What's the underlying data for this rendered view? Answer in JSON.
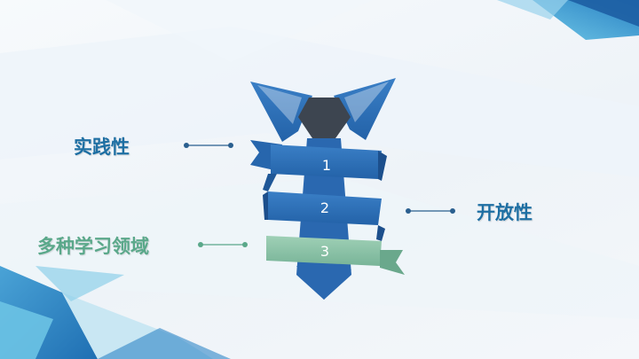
{
  "labels": {
    "practice": "实践性",
    "open": "开放性",
    "multi_domain": "多种学习领域"
  },
  "steps": [
    "1",
    "2",
    "3"
  ],
  "colors": {
    "primary_blue": "#2f70b8",
    "dark_blue": "#1c4f8c",
    "teal_text": "#1e6fa3",
    "green": "#8ac3a8",
    "green_text": "#5aa88a",
    "knot": "#3d4550"
  }
}
